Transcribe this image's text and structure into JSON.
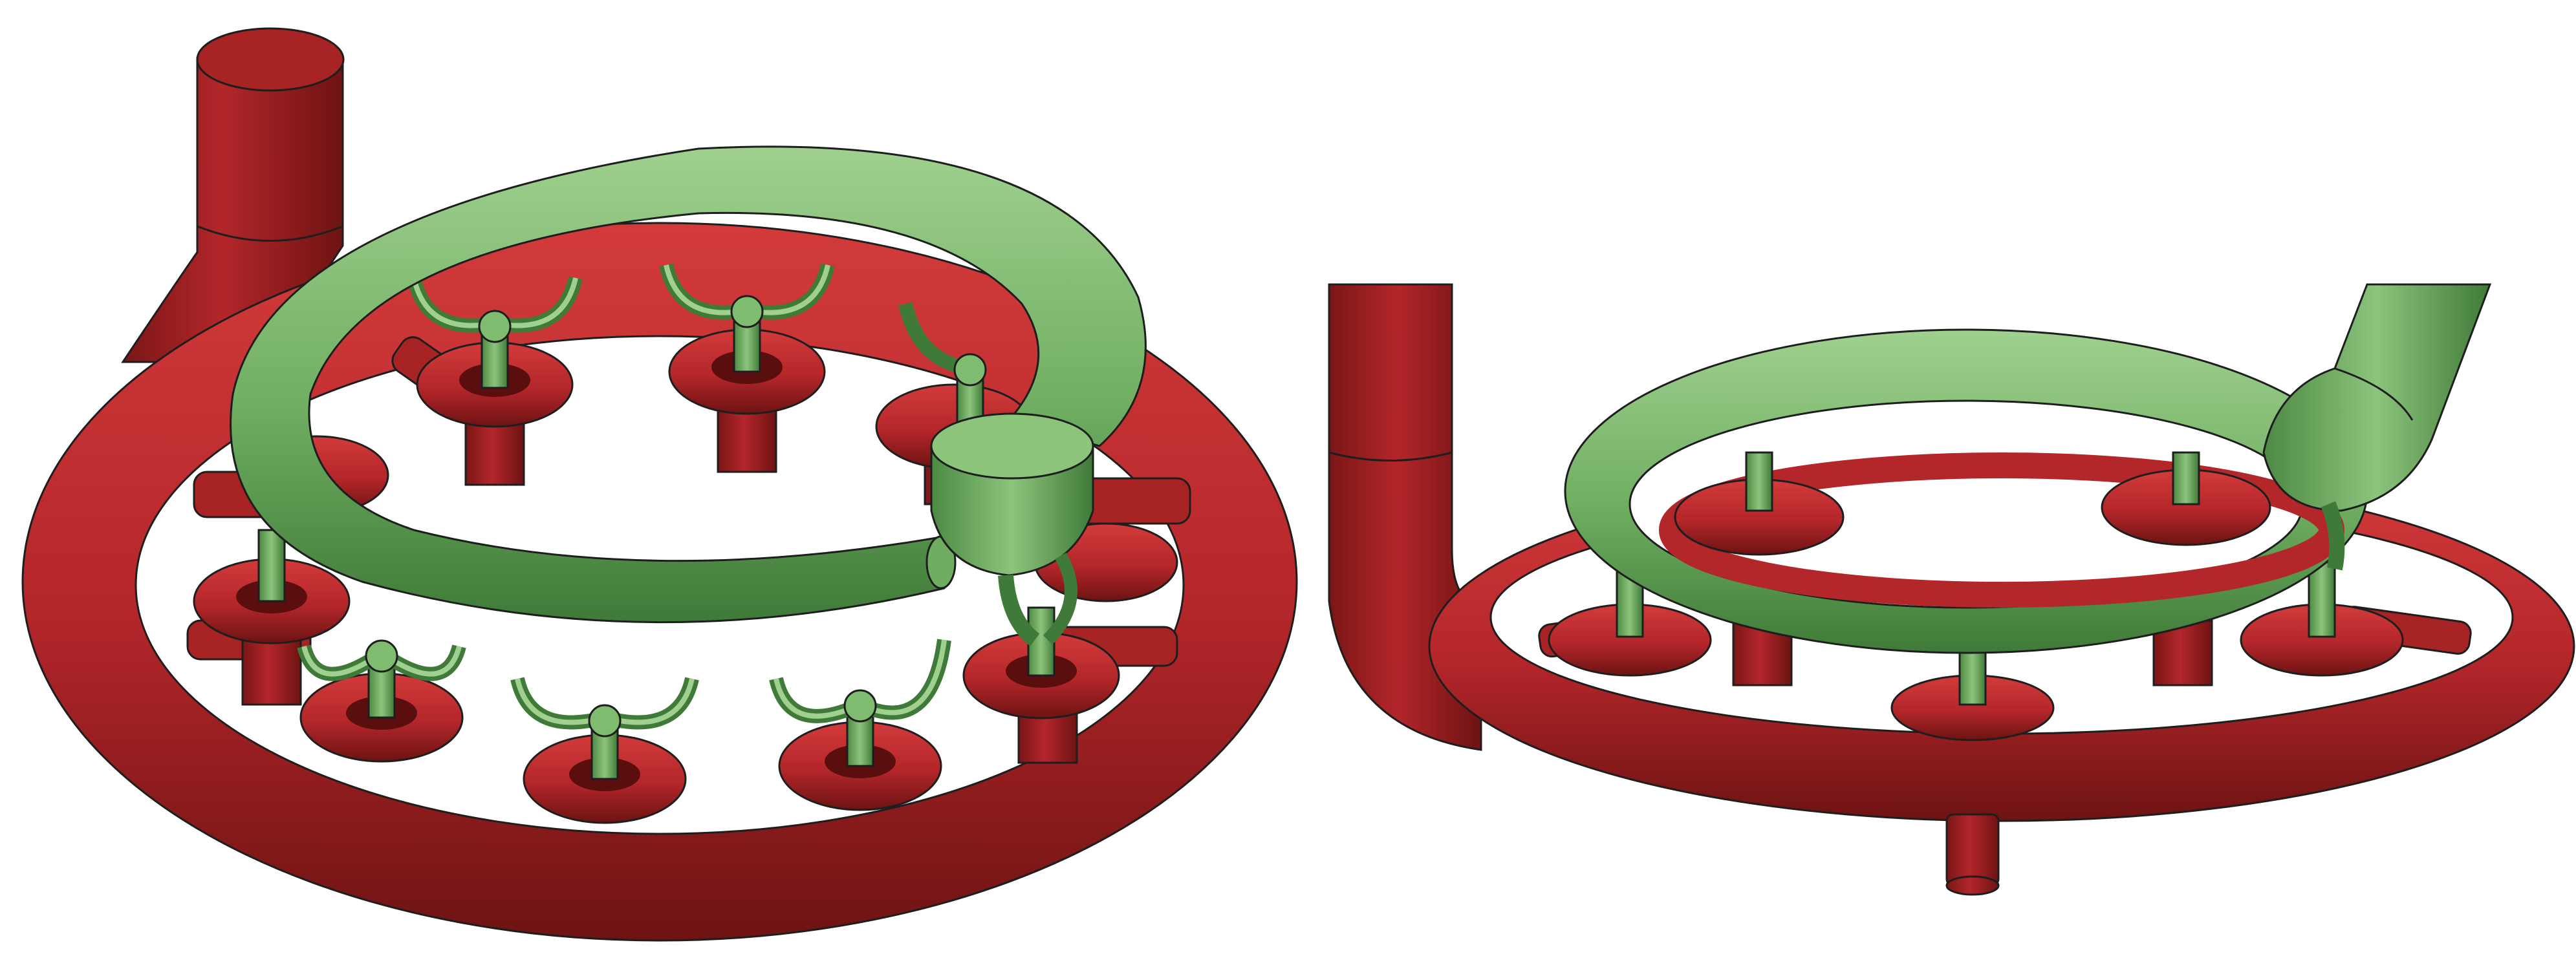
{
  "figure": {
    "panels": [
      {
        "view": "perspective-top"
      },
      {
        "view": "perspective-side"
      }
    ]
  },
  "colors": {
    "background": "#ffffff",
    "red_base": "#b3262a",
    "red_light": "#d23a3a",
    "red_dark": "#6e1313",
    "green_base": "#6fae61",
    "green_light": "#9fd08f",
    "green_dark": "#3f7a38",
    "outline": "#1e1e1e"
  }
}
